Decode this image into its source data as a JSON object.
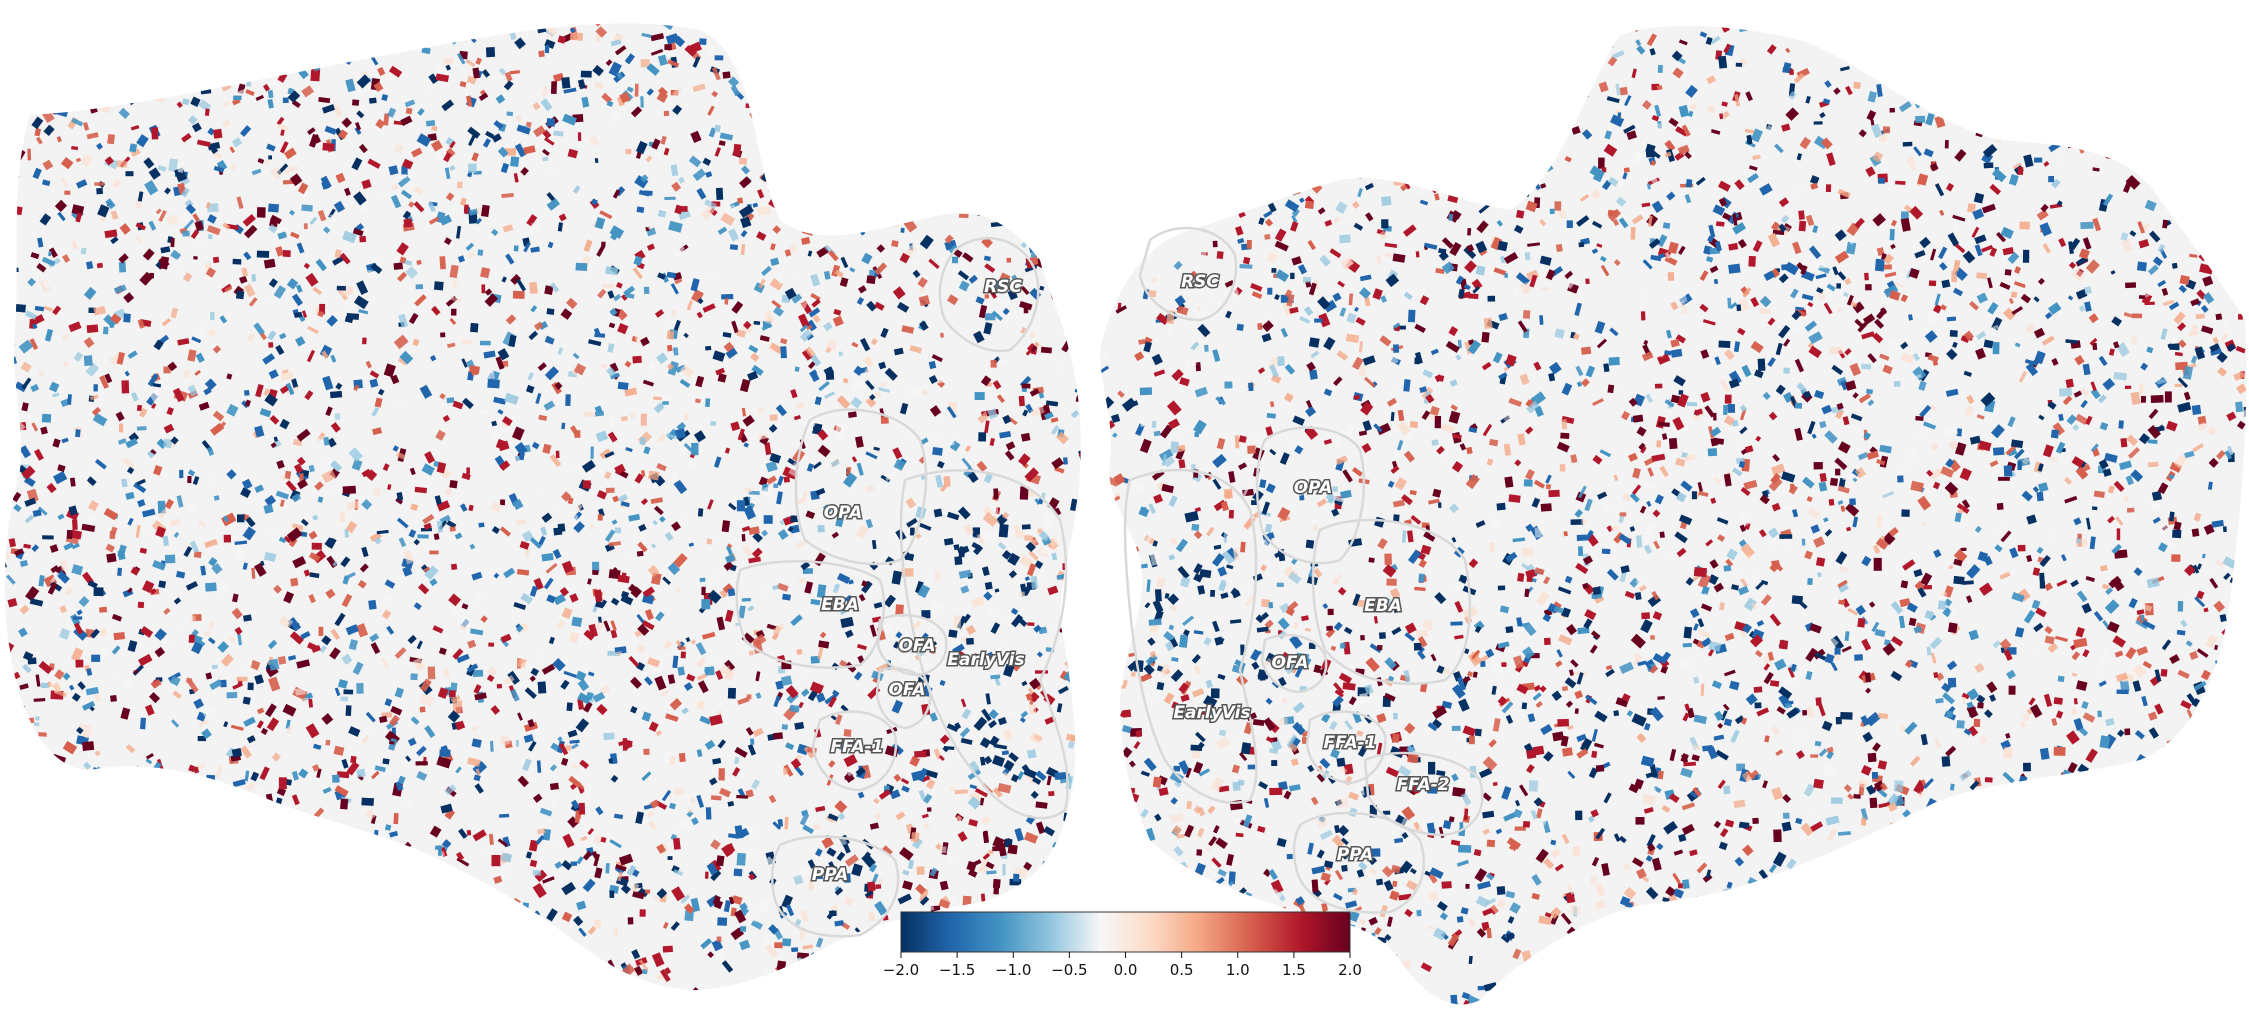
{
  "roi_labels": {
    "left": [
      "RSC",
      "OPA",
      "EBA",
      "OFA",
      "EarlyVis",
      "OFA",
      "FFA-1",
      "PPA"
    ],
    "right": [
      "RSC",
      "OPA",
      "EBA",
      "OFA",
      "EarlyVis",
      "FFA-1",
      "FFA-2",
      "PPA"
    ]
  },
  "colorbar": {
    "colormap": "RdBu_r",
    "min": -2.0,
    "max": 2.0,
    "ticks": [
      "−2.0",
      "−1.5",
      "−1.0",
      "−0.5",
      "0.0",
      "0.5",
      "1.0",
      "1.5",
      "2.0"
    ],
    "stops": [
      "#053061",
      "#2166ac",
      "#4393c3",
      "#92c5de",
      "#f7f7f7",
      "#fddbc7",
      "#f4a582",
      "#d6604d",
      "#b2182b",
      "#67001f"
    ]
  },
  "colors": {
    "cortex_background": "#f3f3f3",
    "roi_outline": "#d9d9d9"
  }
}
